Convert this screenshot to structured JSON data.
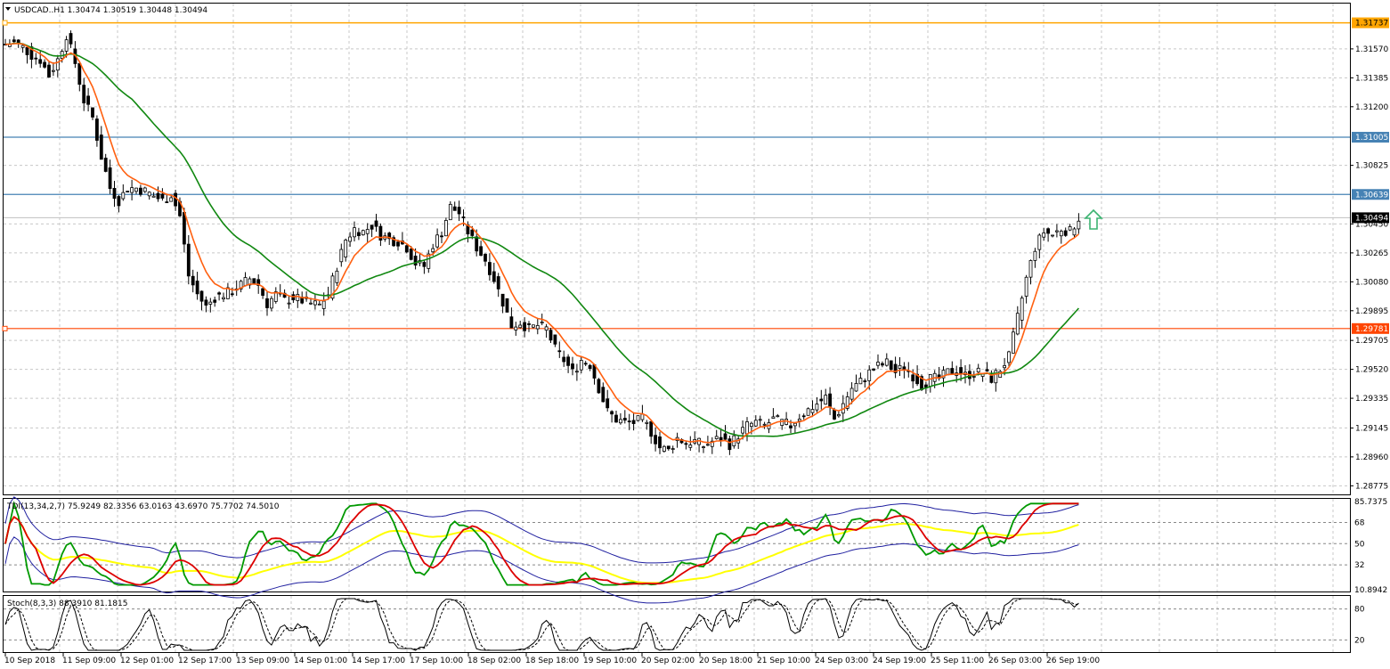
{
  "main_panel": {
    "title": "USDCAD..H1  1.30474 1.30519 1.30448 1.30494",
    "y_ticks": [
      "1.31570",
      "1.31385",
      "1.31200",
      "1.30825",
      "1.30450",
      "1.30265",
      "1.30080",
      "1.29895",
      "1.29705",
      "1.29520",
      "1.29335",
      "1.29145",
      "1.28960",
      "1.28775"
    ],
    "level_labels": {
      "orange_top": "1.31737",
      "blue_1": "1.31005",
      "blue_2": "1.30639",
      "current": "1.30494",
      "red_support": "1.29781"
    }
  },
  "tdi_panel": {
    "title": "TDI(13,34,2,7) 75.9249 82.3356 63.0163 43.6970 75.7702 74.5010",
    "y_ticks": [
      "85.7375",
      "68",
      "50",
      "32",
      "10.8942"
    ]
  },
  "stoch_panel": {
    "title": "Stoch(8,3,3) 88.3910 81.1815",
    "y_ticks": [
      "80",
      "20"
    ]
  },
  "x_axis": {
    "labels": [
      "10 Sep 2018",
      "11 Sep 09:00",
      "12 Sep 01:00",
      "12 Sep 17:00",
      "13 Sep 09:00",
      "14 Sep 01:00",
      "14 Sep 17:00",
      "17 Sep 10:00",
      "18 Sep 02:00",
      "18 Sep 18:00",
      "19 Sep 10:00",
      "20 Sep 02:00",
      "20 Sep 18:00",
      "21 Sep 10:00",
      "24 Sep 03:00",
      "24 Sep 19:00",
      "25 Sep 11:00",
      "26 Sep 03:00",
      "26 Sep 19:00"
    ]
  },
  "colors": {
    "ema_fast": "#ff6010",
    "sma_slow": "#118811",
    "orange_level": "#ffa500",
    "blue_level": "#4682b4",
    "red_level": "#ff4500",
    "arrow": "#3cb371"
  },
  "chart_data": {
    "type": "line",
    "symbol": "USDCAD",
    "timeframe": "H1",
    "ylim": [
      1.2872,
      1.3186
    ],
    "anchors": [
      {
        "t": 0,
        "p": 1.316
      },
      {
        "t": 2,
        "p": 1.3161
      },
      {
        "t": 4,
        "p": 1.3158
      },
      {
        "t": 6,
        "p": 1.3153
      },
      {
        "t": 8,
        "p": 1.315
      },
      {
        "t": 10,
        "p": 1.314
      },
      {
        "t": 12,
        "p": 1.315
      },
      {
        "t": 14,
        "p": 1.3166
      },
      {
        "t": 16,
        "p": 1.3148
      },
      {
        "t": 18,
        "p": 1.3124
      },
      {
        "t": 20,
        "p": 1.3113
      },
      {
        "t": 22,
        "p": 1.3088
      },
      {
        "t": 24,
        "p": 1.3068
      },
      {
        "t": 26,
        "p": 1.306
      },
      {
        "t": 28,
        "p": 1.3068
      },
      {
        "t": 30,
        "p": 1.3068
      },
      {
        "t": 32,
        "p": 1.3066
      },
      {
        "t": 34,
        "p": 1.3063
      },
      {
        "t": 36,
        "p": 1.306
      },
      {
        "t": 38,
        "p": 1.3064
      },
      {
        "t": 40,
        "p": 1.305
      },
      {
        "t": 42,
        "p": 1.3012
      },
      {
        "t": 44,
        "p": 1.3
      },
      {
        "t": 46,
        "p": 1.2992
      },
      {
        "t": 48,
        "p": 1.2998
      },
      {
        "t": 50,
        "p": 1.3
      },
      {
        "t": 52,
        "p": 1.3002
      },
      {
        "t": 54,
        "p": 1.3006
      },
      {
        "t": 56,
        "p": 1.301
      },
      {
        "t": 58,
        "p": 1.3006
      },
      {
        "t": 60,
        "p": 1.2994
      },
      {
        "t": 62,
        "p": 1.3
      },
      {
        "t": 64,
        "p": 1.2996
      },
      {
        "t": 66,
        "p": 1.2998
      },
      {
        "t": 68,
        "p": 1.2996
      },
      {
        "t": 70,
        "p": 1.2994
      },
      {
        "t": 72,
        "p": 1.2993
      },
      {
        "t": 74,
        "p": 1.3
      },
      {
        "t": 76,
        "p": 1.3018
      },
      {
        "t": 78,
        "p": 1.3035
      },
      {
        "t": 80,
        "p": 1.3042
      },
      {
        "t": 82,
        "p": 1.304
      },
      {
        "t": 84,
        "p": 1.3044
      },
      {
        "t": 86,
        "p": 1.3038
      },
      {
        "t": 88,
        "p": 1.3035
      },
      {
        "t": 90,
        "p": 1.3034
      },
      {
        "t": 92,
        "p": 1.303
      },
      {
        "t": 94,
        "p": 1.302
      },
      {
        "t": 96,
        "p": 1.3018
      },
      {
        "t": 98,
        "p": 1.3032
      },
      {
        "t": 100,
        "p": 1.304
      },
      {
        "t": 102,
        "p": 1.3056
      },
      {
        "t": 104,
        "p": 1.3052
      },
      {
        "t": 106,
        "p": 1.304
      },
      {
        "t": 108,
        "p": 1.303
      },
      {
        "t": 110,
        "p": 1.3022
      },
      {
        "t": 112,
        "p": 1.301
      },
      {
        "t": 114,
        "p": 1.2995
      },
      {
        "t": 116,
        "p": 1.298
      },
      {
        "t": 118,
        "p": 1.2982
      },
      {
        "t": 120,
        "p": 1.2978
      },
      {
        "t": 122,
        "p": 1.298
      },
      {
        "t": 124,
        "p": 1.2978
      },
      {
        "t": 126,
        "p": 1.2965
      },
      {
        "t": 128,
        "p": 1.2958
      },
      {
        "t": 130,
        "p": 1.295
      },
      {
        "t": 132,
        "p": 1.2958
      },
      {
        "t": 134,
        "p": 1.2955
      },
      {
        "t": 136,
        "p": 1.294
      },
      {
        "t": 138,
        "p": 1.2925
      },
      {
        "t": 140,
        "p": 1.292
      },
      {
        "t": 142,
        "p": 1.2918
      },
      {
        "t": 144,
        "p": 1.2918
      },
      {
        "t": 146,
        "p": 1.292
      },
      {
        "t": 148,
        "p": 1.2912
      },
      {
        "t": 150,
        "p": 1.2902
      },
      {
        "t": 152,
        "p": 1.29
      },
      {
        "t": 154,
        "p": 1.2908
      },
      {
        "t": 156,
        "p": 1.2905
      },
      {
        "t": 158,
        "p": 1.2906
      },
      {
        "t": 160,
        "p": 1.2903
      },
      {
        "t": 162,
        "p": 1.2906
      },
      {
        "t": 164,
        "p": 1.2908
      },
      {
        "t": 166,
        "p": 1.2904
      },
      {
        "t": 168,
        "p": 1.291
      },
      {
        "t": 170,
        "p": 1.2916
      },
      {
        "t": 172,
        "p": 1.2918
      },
      {
        "t": 174,
        "p": 1.2916
      },
      {
        "t": 176,
        "p": 1.292
      },
      {
        "t": 178,
        "p": 1.2918
      },
      {
        "t": 180,
        "p": 1.2916
      },
      {
        "t": 182,
        "p": 1.2922
      },
      {
        "t": 184,
        "p": 1.2926
      },
      {
        "t": 186,
        "p": 1.293
      },
      {
        "t": 188,
        "p": 1.2934
      },
      {
        "t": 190,
        "p": 1.292
      },
      {
        "t": 192,
        "p": 1.293
      },
      {
        "t": 194,
        "p": 1.294
      },
      {
        "t": 196,
        "p": 1.2944
      },
      {
        "t": 198,
        "p": 1.295
      },
      {
        "t": 200,
        "p": 1.2954
      },
      {
        "t": 202,
        "p": 1.2956
      },
      {
        "t": 204,
        "p": 1.295
      },
      {
        "t": 206,
        "p": 1.2954
      },
      {
        "t": 208,
        "p": 1.2948
      },
      {
        "t": 210,
        "p": 1.2942
      },
      {
        "t": 212,
        "p": 1.2946
      },
      {
        "t": 214,
        "p": 1.2946
      },
      {
        "t": 216,
        "p": 1.295
      },
      {
        "t": 218,
        "p": 1.2952
      },
      {
        "t": 220,
        "p": 1.2948
      },
      {
        "t": 222,
        "p": 1.295
      },
      {
        "t": 224,
        "p": 1.295
      },
      {
        "t": 226,
        "p": 1.2946
      },
      {
        "t": 228,
        "p": 1.2952
      },
      {
        "t": 230,
        "p": 1.296
      },
      {
        "t": 232,
        "p": 1.2985
      },
      {
        "t": 234,
        "p": 1.301
      },
      {
        "t": 236,
        "p": 1.303
      },
      {
        "t": 238,
        "p": 1.304
      },
      {
        "t": 240,
        "p": 1.3038
      },
      {
        "t": 242,
        "p": 1.3042
      },
      {
        "t": 244,
        "p": 1.304
      },
      {
        "t": 246,
        "p": 1.3049
      }
    ],
    "levels": [
      1.31737,
      1.31005,
      1.30639,
      1.29781
    ]
  }
}
